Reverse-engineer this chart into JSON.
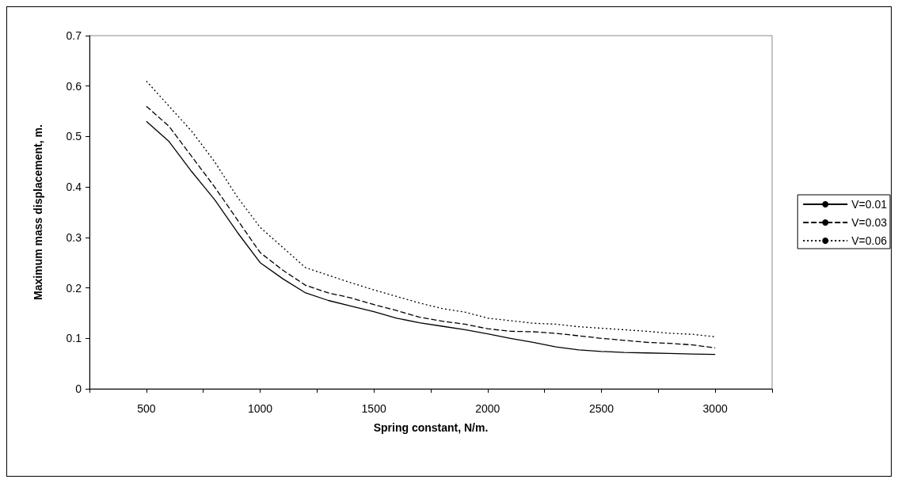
{
  "chart_data": {
    "type": "line",
    "xlabel": "Spring constant, N/m.",
    "ylabel": "Maximum mass displacement, m.",
    "x": [
      500,
      600,
      700,
      800,
      900,
      1000,
      1100,
      1200,
      1300,
      1400,
      1500,
      1600,
      1700,
      1800,
      1900,
      2000,
      2100,
      2200,
      2300,
      2400,
      2500,
      2600,
      2700,
      2800,
      2900,
      3000
    ],
    "series": [
      {
        "name": "V=0.01",
        "color": "#000000",
        "line_style": "solid",
        "values": [
          0.53,
          0.49,
          0.43,
          0.375,
          0.31,
          0.25,
          0.218,
          0.19,
          0.175,
          0.164,
          0.153,
          0.14,
          0.131,
          0.124,
          0.117,
          0.109,
          0.1,
          0.092,
          0.083,
          0.077,
          0.074,
          0.072,
          0.071,
          0.07,
          0.069,
          0.068
        ]
      },
      {
        "name": "V=0.03",
        "color": "#000000",
        "line_style": "dashed",
        "values": [
          0.56,
          0.52,
          0.46,
          0.4,
          0.335,
          0.27,
          0.235,
          0.205,
          0.19,
          0.18,
          0.167,
          0.155,
          0.142,
          0.134,
          0.128,
          0.119,
          0.114,
          0.113,
          0.11,
          0.105,
          0.1,
          0.096,
          0.092,
          0.09,
          0.087,
          0.081
        ]
      },
      {
        "name": "V=0.06",
        "color": "#000000",
        "line_style": "dotted",
        "values": [
          0.61,
          0.56,
          0.51,
          0.45,
          0.38,
          0.32,
          0.28,
          0.24,
          0.225,
          0.21,
          0.196,
          0.183,
          0.17,
          0.159,
          0.152,
          0.14,
          0.135,
          0.13,
          0.128,
          0.123,
          0.12,
          0.117,
          0.114,
          0.11,
          0.108,
          0.103
        ]
      }
    ],
    "xlim": [
      250,
      3250
    ],
    "xticks": [
      {
        "value": 250,
        "label": null
      },
      500,
      {
        "value": 750,
        "label": null
      },
      1000,
      {
        "value": 1250,
        "label": null
      },
      1500,
      {
        "value": 1750,
        "label": null
      },
      2000,
      {
        "value": 2250,
        "label": null
      },
      2500,
      {
        "value": 2750,
        "label": null
      },
      3000,
      {
        "value": 3250,
        "label": null
      }
    ],
    "ylim": [
      0,
      0.7
    ],
    "yticks": [
      0,
      0.1,
      0.2,
      0.3,
      0.4,
      0.5,
      0.6,
      0.7
    ],
    "legend": "right",
    "marker": "none"
  }
}
